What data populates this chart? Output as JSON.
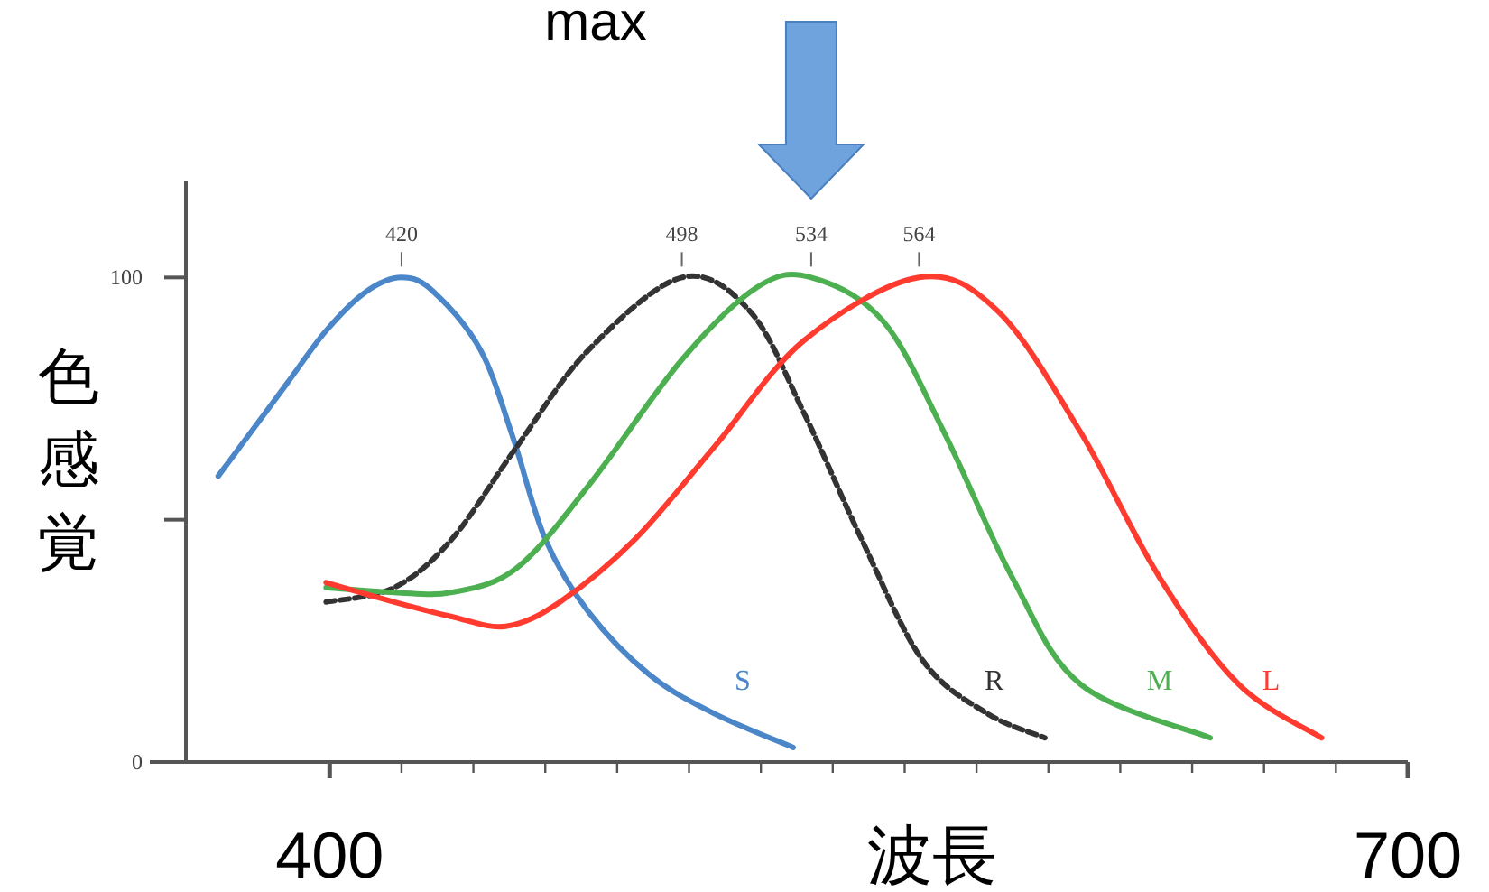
{
  "chart_data": {
    "type": "line",
    "xlabel": "波長",
    "ylabel": "色感覚",
    "xlim": [
      360,
      700
    ],
    "ylim": [
      0,
      120
    ],
    "xticks": [
      400,
      {
        "value": 420,
        "label": null
      },
      {
        "value": 440,
        "label": null
      },
      {
        "value": 460,
        "label": null
      },
      {
        "value": 480,
        "label": null
      },
      {
        "value": 500,
        "label": null
      },
      {
        "value": 520,
        "label": null
      },
      {
        "value": 540,
        "label": null
      },
      {
        "value": 560,
        "label": null
      },
      {
        "value": 580,
        "label": null
      },
      {
        "value": 600,
        "label": null
      },
      {
        "value": 620,
        "label": null
      },
      {
        "value": 640,
        "label": null
      },
      {
        "value": 660,
        "label": null
      },
      {
        "value": 680,
        "label": null
      },
      700
    ],
    "yticks": [
      0,
      {
        "value": 50,
        "label": null
      },
      100
    ],
    "grid": false,
    "marker": "none",
    "series": [
      {
        "name": "S",
        "color": "#4a86c8",
        "line_style": "solid",
        "x": [
          369,
          377,
          388,
          399,
          410,
          420,
          429,
          442,
          451,
          460,
          472,
          489,
          507,
          529
        ],
        "values": [
          59,
          67,
          78,
          89,
          97,
          100,
          97,
          85,
          67,
          46,
          31,
          18,
          10,
          3
        ]
      },
      {
        "name": "R",
        "color": "#333333",
        "line_style": "dashed",
        "x": [
          399,
          418,
          434,
          452,
          472,
          498,
          517,
          532,
          548,
          565,
          583,
          599
        ],
        "values": [
          33,
          36,
          46,
          65,
          85,
          100,
          93,
          72,
          46,
          21,
          10,
          5
        ]
      },
      {
        "name": "M",
        "color": "#4caf50",
        "line_style": "solid",
        "x": [
          399,
          418,
          434,
          452,
          472,
          498,
          519,
          534,
          554,
          571,
          590,
          609,
          645
        ],
        "values": [
          36,
          35,
          35,
          40,
          57,
          83,
          98,
          100,
          91,
          68,
          38,
          16,
          5
        ]
      },
      {
        "name": "L",
        "color": "#ff3b30",
        "line_style": "solid",
        "x": [
          399,
          418,
          434,
          449,
          464,
          485,
          507,
          532,
          564,
          586,
          609,
          631,
          653,
          676
        ],
        "values": [
          37,
          33,
          30,
          28,
          33,
          46,
          65,
          87,
          100,
          93,
          68,
          38,
          16,
          5
        ]
      }
    ],
    "annotations": [
      "max",
      {
        "text": "420",
        "x": 420,
        "y": 100
      },
      {
        "text": "498",
        "x": 498,
        "y": 100
      },
      {
        "text": "534",
        "x": 534,
        "y": 100
      },
      {
        "text": "564",
        "x": 564,
        "y": 100
      }
    ]
  }
}
